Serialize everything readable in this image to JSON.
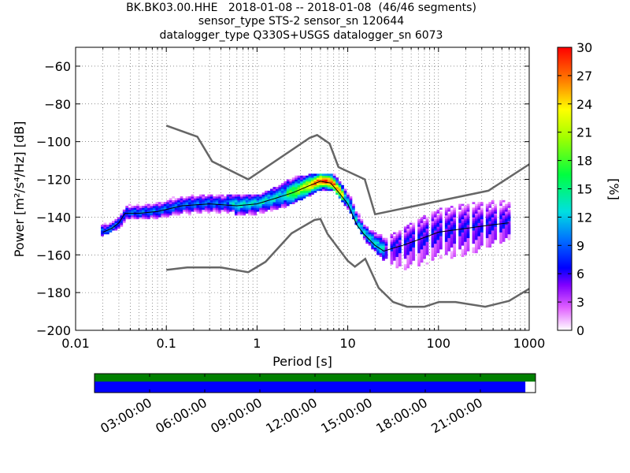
{
  "title_lines": [
    "BK.BK03.00.HHE   2018-01-08 -- 2018-01-08  (46/46 segments)",
    "sensor_type STS-2 sensor_sn 120644",
    "datalogger_type Q330S+USGS datalogger_sn 6073"
  ],
  "chart_data": {
    "type": "heatmap",
    "xlabel": "Period [s]",
    "ylabel": "Power [m²/s⁴/Hz] [dB]",
    "xscale": "log",
    "xlim": [
      0.01,
      1000
    ],
    "ylim": [
      -200,
      -50
    ],
    "x_ticks": [
      {
        "value": 0.01,
        "label": "0.01"
      },
      {
        "value": 0.1,
        "label": "0.1"
      },
      {
        "value": 1,
        "label": "1"
      },
      {
        "value": 10,
        "label": "10"
      },
      {
        "value": 100,
        "label": "100"
      },
      {
        "value": 1000,
        "label": "1000"
      }
    ],
    "y_ticks": [
      {
        "value": -60,
        "label": "−60"
      },
      {
        "value": -80,
        "label": "−80"
      },
      {
        "value": -100,
        "label": "−100"
      },
      {
        "value": -120,
        "label": "−120"
      },
      {
        "value": -140,
        "label": "−140"
      },
      {
        "value": -160,
        "label": "−160"
      },
      {
        "value": -180,
        "label": "−180"
      },
      {
        "value": -200,
        "label": "−200"
      }
    ],
    "grid": true,
    "colorbar": {
      "label": "[%]",
      "range": [
        0,
        30
      ],
      "ticks": [
        0,
        3,
        6,
        9,
        12,
        15,
        18,
        21,
        24,
        27,
        30
      ]
    },
    "noise_model_high": [
      [
        0.1,
        -91.5
      ],
      [
        0.22,
        -97.4
      ],
      [
        0.32,
        -110.5
      ],
      [
        0.8,
        -120
      ],
      [
        3.8,
        -98
      ],
      [
        4.6,
        -96.5
      ],
      [
        6.3,
        -101
      ],
      [
        7.9,
        -113.5
      ],
      [
        15.4,
        -120
      ],
      [
        20,
        -138.5
      ],
      [
        354.8,
        -126
      ],
      [
        1000,
        -112
      ]
    ],
    "noise_model_low": [
      [
        0.1,
        -168
      ],
      [
        0.17,
        -166.7
      ],
      [
        0.4,
        -166.7
      ],
      [
        0.8,
        -169.2
      ],
      [
        1.24,
        -163.7
      ],
      [
        2.4,
        -148.6
      ],
      [
        4.3,
        -141.5
      ],
      [
        5,
        -141
      ],
      [
        6,
        -149
      ],
      [
        10,
        -163.2
      ],
      [
        12,
        -166.3
      ],
      [
        15.6,
        -162.1
      ],
      [
        21.9,
        -177.5
      ],
      [
        31.6,
        -185
      ],
      [
        45,
        -187.5
      ],
      [
        70,
        -187.5
      ],
      [
        101,
        -185
      ],
      [
        154,
        -185
      ],
      [
        328,
        -187.5
      ],
      [
        600,
        -184.4
      ],
      [
        1000,
        -178
      ]
    ],
    "median_psd": [
      [
        0.02,
        -148
      ],
      [
        0.025,
        -146
      ],
      [
        0.03,
        -143
      ],
      [
        0.035,
        -138
      ],
      [
        0.05,
        -138
      ],
      [
        0.08,
        -137
      ],
      [
        0.15,
        -134
      ],
      [
        0.3,
        -133
      ],
      [
        0.6,
        -134
      ],
      [
        1,
        -133
      ],
      [
        1.6,
        -130
      ],
      [
        2.5,
        -127
      ],
      [
        3.5,
        -124
      ],
      [
        5,
        -121
      ],
      [
        6.5,
        -122
      ],
      [
        8,
        -127
      ],
      [
        10,
        -133
      ],
      [
        12.5,
        -144
      ],
      [
        15,
        -149
      ],
      [
        20,
        -155
      ],
      [
        25,
        -158
      ],
      [
        40,
        -155
      ],
      [
        60,
        -152
      ],
      [
        100,
        -148
      ],
      [
        200,
        -146
      ],
      [
        400,
        -144
      ],
      [
        600,
        -143
      ]
    ],
    "density_envelope_upper": [
      [
        0.02,
        -141
      ],
      [
        0.03,
        -138
      ],
      [
        0.04,
        -132
      ],
      [
        0.1,
        -130
      ],
      [
        0.3,
        -128
      ],
      [
        1,
        -129
      ],
      [
        2.5,
        -119
      ],
      [
        5,
        -117
      ],
      [
        7,
        -118
      ],
      [
        10,
        -128
      ],
      [
        15,
        -145
      ],
      [
        25,
        -151
      ],
      [
        60,
        -141
      ],
      [
        100,
        -136
      ],
      [
        200,
        -133
      ],
      [
        600,
        -131
      ]
    ],
    "density_envelope_lower": [
      [
        0.02,
        -150
      ],
      [
        0.03,
        -146
      ],
      [
        0.04,
        -141
      ],
      [
        0.1,
        -141
      ],
      [
        0.3,
        -140
      ],
      [
        1,
        -139
      ],
      [
        2,
        -135
      ],
      [
        3,
        -131
      ],
      [
        5,
        -126
      ],
      [
        7,
        -127
      ],
      [
        10,
        -137
      ],
      [
        15,
        -153
      ],
      [
        25,
        -164
      ],
      [
        40,
        -169
      ],
      [
        60,
        -167
      ],
      [
        100,
        -163
      ],
      [
        200,
        -161
      ],
      [
        600,
        -152
      ]
    ]
  },
  "timeline": {
    "labels": [
      "03:00:00",
      "06:00:00",
      "09:00:00",
      "12:00:00",
      "15:00:00",
      "18:00:00",
      "21:00:00"
    ],
    "coverage_fraction": 0.977,
    "colors": {
      "top": "#008000",
      "bottom": "#0000ff"
    }
  },
  "colors": {
    "noise_model": "#666666",
    "median": "#000000"
  }
}
